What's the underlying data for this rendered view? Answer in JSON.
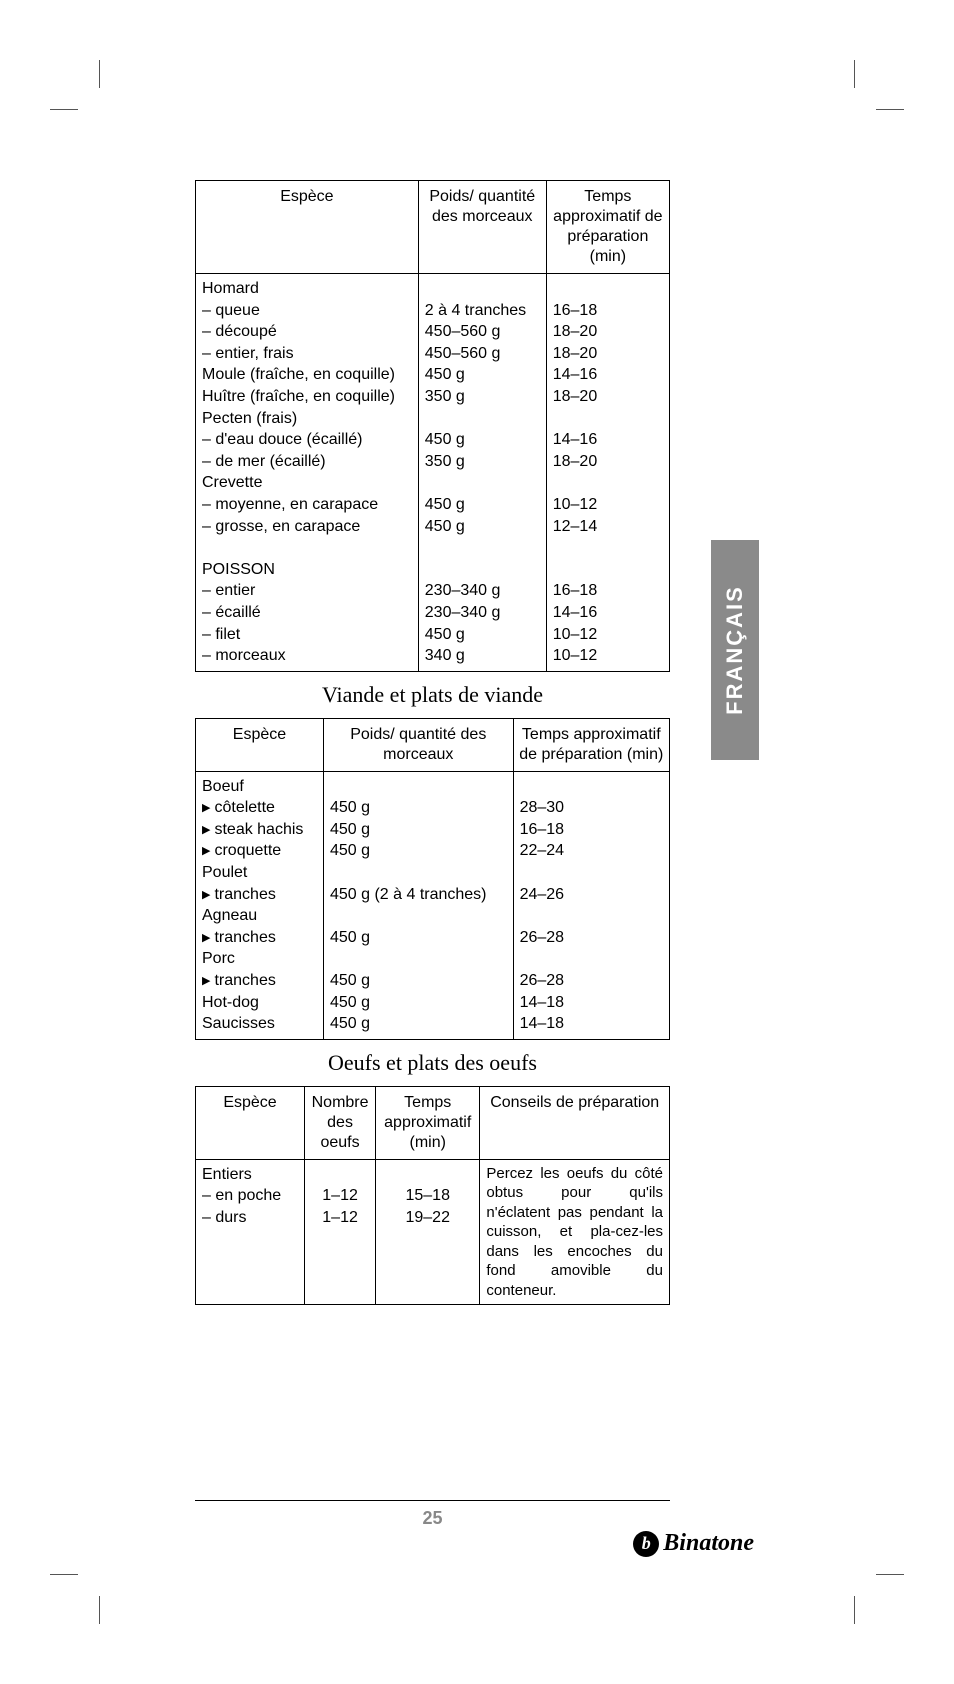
{
  "language_tab": "FRANÇAIS",
  "page_number": "25",
  "brand": "Binatone",
  "tables": {
    "table1": {
      "col_widths_pct": [
        47,
        27,
        26
      ],
      "headers": [
        "Espèce",
        "Poids/ quantité des morceaux",
        "Temps approximatif de préparation (min)"
      ],
      "rows": [
        {
          "c0": "Homard",
          "c1": "",
          "c2": ""
        },
        {
          "c0": "– queue",
          "c1": "2 à 4 tranches",
          "c2": "16–18"
        },
        {
          "c0": "– découpé",
          "c1": "450–560 g",
          "c2": "18–20"
        },
        {
          "c0": "– entier, frais",
          "c1": "450–560 g",
          "c2": "18–20"
        },
        {
          "c0": "Moule (fraîche, en coquille)",
          "c1": "450 g",
          "c2": "14–16"
        },
        {
          "c0": "Huître (fraîche, en coquille)",
          "c1": "350 g",
          "c2": "18–20"
        },
        {
          "c0": "Pecten (frais)",
          "c1": "",
          "c2": ""
        },
        {
          "c0": "– d'eau douce (écaillé)",
          "c1": "450 g",
          "c2": "14–16"
        },
        {
          "c0": "– de mer (écaillé)",
          "c1": "350 g",
          "c2": "18–20"
        },
        {
          "c0": "Crevette",
          "c1": "",
          "c2": ""
        },
        {
          "c0": "– moyenne, en carapace",
          "c1": "450 g",
          "c2": "10–12"
        },
        {
          "c0": "– grosse, en carapace",
          "c1": "450 g",
          "c2": "12–14"
        },
        {
          "c0": " ",
          "c1": "",
          "c2": ""
        },
        {
          "c0": "POISSON",
          "c1": "",
          "c2": ""
        },
        {
          "c0": "– entier",
          "c1": "230–340 g",
          "c2": "16–18"
        },
        {
          "c0": "– écaillé",
          "c1": "230–340 g",
          "c2": "14–16"
        },
        {
          "c0": "– filet",
          "c1": "450 g",
          "c2": "10–12"
        },
        {
          "c0": "– morceaux",
          "c1": "340 g",
          "c2": "10–12"
        }
      ]
    },
    "section2_title": "Viande et plats de viande",
    "table2": {
      "col_widths_pct": [
        27,
        40,
        33
      ],
      "headers": [
        "Espèce",
        "Poids/ quantité des morceaux",
        "Temps approximatif de préparation (min)"
      ],
      "rows": [
        {
          "c0": "Boeuf",
          "bullet": false,
          "c1": "",
          "c2": ""
        },
        {
          "c0": "côtelette",
          "bullet": true,
          "c1": "450 g",
          "c2": "28–30"
        },
        {
          "c0": "steak hachis",
          "bullet": true,
          "c1": "450 g",
          "c2": "16–18"
        },
        {
          "c0": "croquette",
          "bullet": true,
          "c1": "450 g",
          "c2": "22–24"
        },
        {
          "c0": "Poulet",
          "bullet": false,
          "c1": "",
          "c2": ""
        },
        {
          "c0": "tranches",
          "bullet": true,
          "c1": "450 g (2 à 4 tranches)",
          "c2": "24–26"
        },
        {
          "c0": "Agneau",
          "bullet": false,
          "c1": "",
          "c2": ""
        },
        {
          "c0": "tranches",
          "bullet": true,
          "c1": "450 g",
          "c2": "26–28"
        },
        {
          "c0": "Porc",
          "bullet": false,
          "c1": "",
          "c2": ""
        },
        {
          "c0": "tranches",
          "bullet": true,
          "c1": "450 g",
          "c2": "26–28"
        },
        {
          "c0": "Hot-dog",
          "bullet": false,
          "c1": "450 g",
          "c2": "14–18"
        },
        {
          "c0": "Saucisses",
          "bullet": false,
          "c1": "450 g",
          "c2": "14–18"
        }
      ]
    },
    "section3_title": "Oeufs et plats des oeufs",
    "table3": {
      "col_widths_pct": [
        23,
        15,
        22,
        40
      ],
      "headers": [
        "Espèce",
        "Nombre des oeufs",
        "Temps approximatif (min)",
        "Conseils de préparation"
      ],
      "body": {
        "col0_lines": [
          "Entiers",
          "– en poche",
          "– durs"
        ],
        "col1_lines": [
          "",
          "1–12",
          "1–12"
        ],
        "col2_lines": [
          "",
          "15–18",
          "19–22"
        ],
        "col3_text": "Percez les oeufs du côté obtus pour qu'ils n'éclatent pas pendant la cuisson, et pla-cez-les dans les encoches du fond amovible du conteneur."
      }
    }
  }
}
